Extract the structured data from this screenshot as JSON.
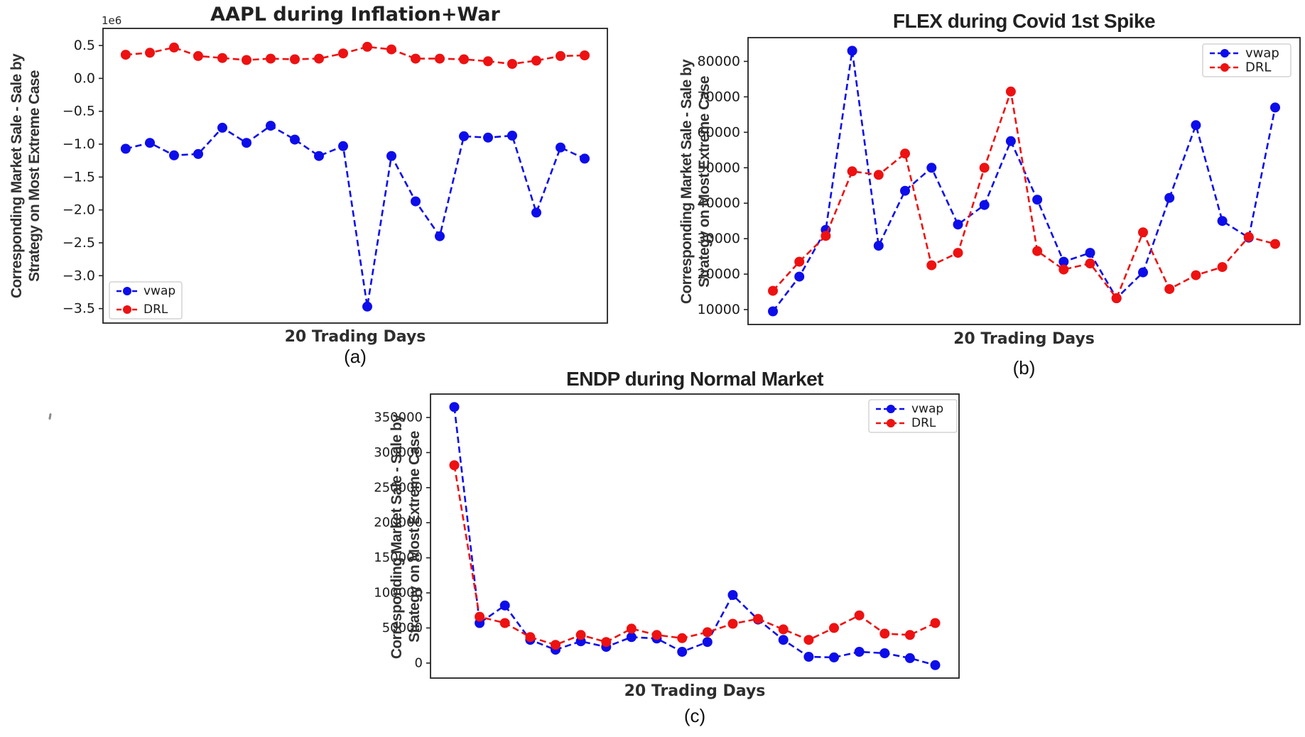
{
  "figure": {
    "background": "#ffffff",
    "vwap_color": "#0d0deb",
    "drl_color": "#ee1111",
    "axis_color": "#222222"
  },
  "chart_data": [
    {
      "id": "a",
      "type": "line",
      "title": "AAPL during Inflation+War",
      "caption": "(a)",
      "xlabel": "20 Trading Days",
      "ylabel_line1": "Corresponding Market Sale - Sale by",
      "ylabel_line2": "Strategy on Most Extreme Case",
      "y_offset_label": "1e6",
      "x": [
        1,
        2,
        3,
        4,
        5,
        6,
        7,
        8,
        9,
        10,
        11,
        12,
        13,
        14,
        15,
        16,
        17,
        18,
        19,
        20
      ],
      "series": [
        {
          "name": "vwap",
          "color": "#0d0deb",
          "linestyle": "dashed",
          "marker": "circle",
          "values": [
            -1070000,
            -980000,
            -1170000,
            -1150000,
            -750000,
            -980000,
            -720000,
            -930000,
            -1180000,
            -1030000,
            -3470000,
            -1180000,
            -1870000,
            -2400000,
            -880000,
            -900000,
            -870000,
            -2040000,
            -1050000,
            -1220000
          ]
        },
        {
          "name": "DRL",
          "color": "#ee1111",
          "linestyle": "dashed",
          "marker": "circle",
          "values": [
            360000,
            390000,
            470000,
            340000,
            310000,
            280000,
            300000,
            290000,
            300000,
            380000,
            480000,
            440000,
            300000,
            300000,
            290000,
            260000,
            220000,
            270000,
            340000,
            350000
          ]
        }
      ],
      "ylim": [
        -3720000,
        760000
      ],
      "yticks": [
        {
          "value": 500000,
          "label": "0.5"
        },
        {
          "value": 0,
          "label": "0.0"
        },
        {
          "value": -500000,
          "label": "−0.5"
        },
        {
          "value": -1000000,
          "label": "−1.0"
        },
        {
          "value": -1500000,
          "label": "−1.5"
        },
        {
          "value": -2000000,
          "label": "−2.0"
        },
        {
          "value": -2500000,
          "label": "−2.5"
        },
        {
          "value": -3000000,
          "label": "−3.0"
        },
        {
          "value": -3500000,
          "label": "−3.5"
        }
      ],
      "legend": {
        "position": "lower left",
        "entries": [
          "vwap",
          "DRL"
        ]
      },
      "grid": false
    },
    {
      "id": "b",
      "type": "line",
      "title": "FLEX during Covid 1st Spike",
      "caption": "(b)",
      "xlabel": "20 Trading Days",
      "ylabel_line1": "Corresponding Market Sale - Sale by",
      "ylabel_line2": "Strategy on Most Extreme Case",
      "y_offset_label": "",
      "x": [
        1,
        2,
        3,
        4,
        5,
        6,
        7,
        8,
        9,
        10,
        11,
        12,
        13,
        14,
        15,
        16,
        17,
        18,
        19,
        20
      ],
      "series": [
        {
          "name": "vwap",
          "color": "#0d0deb",
          "linestyle": "dashed",
          "marker": "circle",
          "values": [
            9500,
            19300,
            32500,
            83000,
            28000,
            43500,
            50000,
            34000,
            39500,
            57500,
            41000,
            23500,
            26000,
            13200,
            20500,
            41500,
            62000,
            35000,
            30300,
            67000
          ]
        },
        {
          "name": "DRL",
          "color": "#ee1111",
          "linestyle": "dashed",
          "marker": "circle",
          "values": [
            15300,
            23500,
            30800,
            49000,
            48000,
            54000,
            22500,
            26000,
            50000,
            71500,
            26500,
            21300,
            23000,
            13200,
            31800,
            15800,
            19700,
            22000,
            30500,
            28500
          ]
        }
      ],
      "ylim": [
        5800,
        86700
      ],
      "yticks": [
        {
          "value": 10000,
          "label": "10000"
        },
        {
          "value": 20000,
          "label": "20000"
        },
        {
          "value": 30000,
          "label": "30000"
        },
        {
          "value": 40000,
          "label": "40000"
        },
        {
          "value": 50000,
          "label": "50000"
        },
        {
          "value": 60000,
          "label": "60000"
        },
        {
          "value": 70000,
          "label": "70000"
        },
        {
          "value": 80000,
          "label": "80000"
        }
      ],
      "legend": {
        "position": "upper right",
        "entries": [
          "vwap",
          "DRL"
        ]
      },
      "grid": false
    },
    {
      "id": "c",
      "type": "line",
      "title": "ENDP during Normal Market",
      "caption": "(c)",
      "xlabel": "20 Trading Days",
      "ylabel_line1": "Corresponding Market Sale - Sale by",
      "ylabel_line2": "Strategy on Most Extreme Case",
      "y_offset_label": "",
      "x": [
        1,
        2,
        3,
        4,
        5,
        6,
        7,
        8,
        9,
        10,
        11,
        12,
        13,
        14,
        15,
        16,
        17,
        18,
        19,
        20
      ],
      "series": [
        {
          "name": "vwap",
          "color": "#0d0deb",
          "linestyle": "dashed",
          "marker": "circle",
          "values": [
            365000,
            57000,
            82000,
            33000,
            19000,
            31000,
            23000,
            37000,
            35000,
            16000,
            30000,
            97000,
            62000,
            33000,
            9000,
            8000,
            16000,
            14000,
            7000,
            -3000
          ]
        },
        {
          "name": "DRL",
          "color": "#ee1111",
          "linestyle": "dashed",
          "marker": "circle",
          "values": [
            282000,
            66000,
            57000,
            37000,
            26000,
            40000,
            30000,
            49000,
            40000,
            35500,
            44000,
            56000,
            63000,
            48000,
            33000,
            50000,
            68000,
            42000,
            40000,
            57000
          ]
        }
      ],
      "ylim": [
        -21400,
        383400
      ],
      "yticks": [
        {
          "value": 0,
          "label": "0"
        },
        {
          "value": 50000,
          "label": "50000"
        },
        {
          "value": 100000,
          "label": "100000"
        },
        {
          "value": 150000,
          "label": "150000"
        },
        {
          "value": 200000,
          "label": "200000"
        },
        {
          "value": 250000,
          "label": "250000"
        },
        {
          "value": 300000,
          "label": "300000"
        },
        {
          "value": 350000,
          "label": "350000"
        }
      ],
      "legend": {
        "position": "upper right",
        "entries": [
          "vwap",
          "DRL"
        ]
      },
      "grid": false
    }
  ]
}
